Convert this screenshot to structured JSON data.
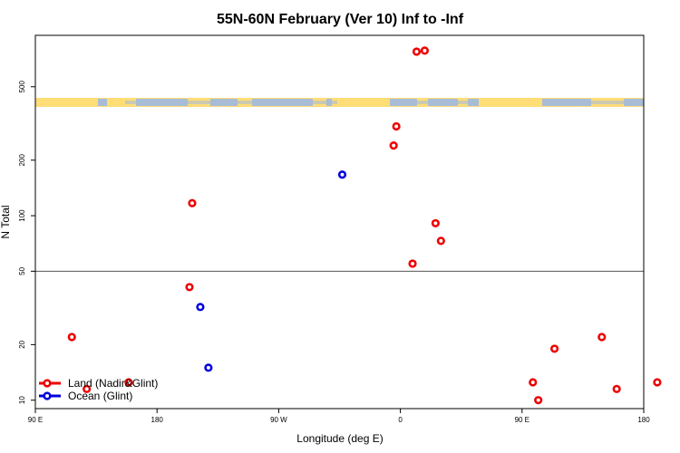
{
  "chart_data": {
    "type": "scatter",
    "title": "55N-60N February (Ver 10)   Inf to -Inf",
    "xlabel": "Longitude (deg E)",
    "ylabel": "N Total",
    "x_ticks": [
      {
        "value": 90,
        "label": "90 E"
      },
      {
        "value": 180,
        "label": "180"
      },
      {
        "value": 270,
        "label": "90 W"
      },
      {
        "value": 360,
        "label": "0"
      },
      {
        "value": 450,
        "label": "90 E"
      },
      {
        "value": 540,
        "label": "180"
      }
    ],
    "y_ticks": [
      10,
      20,
      50,
      100,
      200,
      500
    ],
    "xlim": [
      90,
      540
    ],
    "ylim_log": [
      9,
      950
    ],
    "reference_line_y": 50,
    "land_color": "#ffdd77",
    "ocean_color": "#a8bcd6",
    "series": [
      {
        "name": "Land (Nadir&Glint)",
        "color": "#ee0000",
        "points": [
          {
            "x": 117,
            "y": 22
          },
          {
            "x": 128,
            "y": 11.5
          },
          {
            "x": 159,
            "y": 12.5
          },
          {
            "x": 204,
            "y": 41
          },
          {
            "x": 206,
            "y": 117
          },
          {
            "x": 355,
            "y": 240
          },
          {
            "x": 357,
            "y": 305
          },
          {
            "x": 369,
            "y": 55
          },
          {
            "x": 372,
            "y": 775
          },
          {
            "x": 378,
            "y": 785
          },
          {
            "x": 386,
            "y": 91
          },
          {
            "x": 390,
            "y": 73
          },
          {
            "x": 458,
            "y": 12.5
          },
          {
            "x": 462,
            "y": 10
          },
          {
            "x": 474,
            "y": 19
          },
          {
            "x": 509,
            "y": 22
          },
          {
            "x": 520,
            "y": 11.5
          },
          {
            "x": 550,
            "y": 12.5
          }
        ]
      },
      {
        "name": "Ocean (Glint)",
        "color": "#0000dd",
        "points": [
          {
            "x": 212,
            "y": 32
          },
          {
            "x": 218,
            "y": 15
          },
          {
            "x": 317,
            "y": 167
          }
        ]
      }
    ],
    "legend_position": "bottom-left"
  }
}
